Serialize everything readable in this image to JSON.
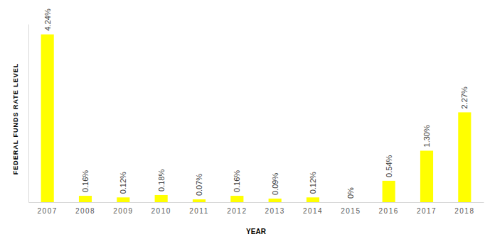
{
  "chart_data": {
    "type": "bar",
    "categories": [
      "2007",
      "2008",
      "2009",
      "2010",
      "2011",
      "2012",
      "2013",
      "2014",
      "2015",
      "2016",
      "2017",
      "2018"
    ],
    "values": [
      4.24,
      0.16,
      0.12,
      0.18,
      0.07,
      0.16,
      0.09,
      0.12,
      0,
      0.54,
      1.3,
      2.27
    ],
    "value_labels": [
      "4.24%",
      "0.16%",
      "0.12%",
      "0.18%",
      "0.07%",
      "0.16%",
      "0.09%",
      "0.12%",
      "0%",
      "0.54%",
      "1.30%",
      "2.27%"
    ],
    "color": "#ffff00",
    "xlabel": "YEAR",
    "ylabel": "FEDERAL FUNDS RATE LEVEL",
    "ylim": [
      0,
      4.5
    ],
    "yticks": [],
    "data_labels": true,
    "tick_labels": "x",
    "grid": false
  }
}
